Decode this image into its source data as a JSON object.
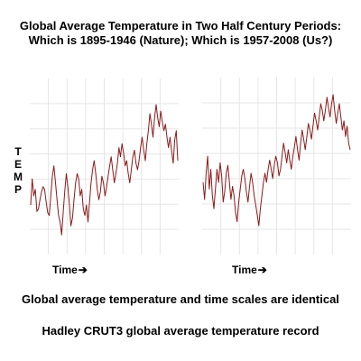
{
  "title": {
    "line1": "Global Average Temperature in Two Half Century Periods:",
    "line2": "Which is 1895-1946 (Nature);  Which is 1957-2008 (Us?)"
  },
  "y_axis_label": [
    "T",
    "E",
    "M",
    "P"
  ],
  "x_axis_label": "Time",
  "x_arrow": "➔",
  "note_scales": "Global average temperature and time scales are identical",
  "note_source": "Hadley CRUT3 global average temperature record",
  "colors": {
    "line": "#8b1a1a",
    "grid": "#e6e6e6",
    "panel_bg": "#ffffff"
  },
  "chart_data": [
    {
      "type": "line",
      "title": "",
      "xlabel": "Time",
      "ylabel": "TEMP",
      "grid": true,
      "series": [
        {
          "values": [
            -0.22,
            -0.02,
            -0.15,
            -0.1,
            -0.27,
            -0.25,
            -0.18,
            -0.12,
            -0.08,
            -0.1,
            -0.2,
            -0.28,
            -0.3,
            -0.15,
            0.0,
            0.08,
            -0.05,
            -0.18,
            -0.3,
            -0.35,
            -0.45,
            -0.28,
            -0.12,
            0.02,
            -0.08,
            -0.22,
            -0.38,
            -0.32,
            -0.18,
            -0.05,
            0.02,
            -0.02,
            -0.15,
            -0.1,
            -0.25,
            -0.3,
            -0.22,
            -0.35,
            -0.2,
            -0.05,
            0.05,
            0.12,
            0.02,
            -0.1,
            -0.18,
            -0.12,
            0.0,
            -0.05,
            -0.15,
            -0.08,
            0.0,
            0.08,
            0.15,
            0.05,
            -0.05,
            0.02,
            0.1,
            0.22,
            0.15,
            0.25,
            0.18,
            0.08,
            0.12,
            0.02,
            -0.05,
            0.05,
            0.15,
            0.2,
            0.1,
            0.05,
            0.12,
            0.22,
            0.3,
            0.2,
            0.12,
            0.25,
            0.35,
            0.48,
            0.4,
            0.3,
            0.45,
            0.55,
            0.45,
            0.38,
            0.5,
            0.42,
            0.35,
            0.4,
            0.3,
            0.22,
            0.3,
            0.2,
            0.1,
            0.28,
            0.35,
            0.12
          ]
        }
      ]
    },
    {
      "type": "line",
      "title": "",
      "xlabel": "Time",
      "ylabel": "",
      "grid": true,
      "series": [
        {
          "values": [
            -0.05,
            -0.18,
            0.02,
            0.15,
            -0.1,
            0.05,
            -0.15,
            -0.25,
            -0.1,
            0.05,
            -0.05,
            0.1,
            0.0,
            -0.2,
            -0.12,
            0.02,
            0.08,
            -0.05,
            -0.18,
            -0.08,
            -0.15,
            -0.28,
            -0.35,
            -0.2,
            -0.1,
            0.0,
            0.05,
            -0.02,
            -0.12,
            -0.2,
            -0.08,
            0.02,
            -0.05,
            -0.15,
            -0.22,
            -0.3,
            -0.38,
            -0.25,
            -0.15,
            -0.05,
            0.02,
            -0.05,
            0.05,
            0.12,
            0.05,
            -0.02,
            0.08,
            0.15,
            0.1,
            0.0,
            0.05,
            0.15,
            0.25,
            0.18,
            0.1,
            0.2,
            0.12,
            0.05,
            0.15,
            0.22,
            0.3,
            0.2,
            0.12,
            0.25,
            0.35,
            0.28,
            0.2,
            0.3,
            0.4,
            0.35,
            0.28,
            0.38,
            0.48,
            0.42,
            0.35,
            0.45,
            0.55,
            0.5,
            0.42,
            0.5,
            0.6,
            0.52,
            0.45,
            0.55,
            0.62,
            0.5,
            0.4,
            0.48,
            0.55,
            0.45,
            0.35,
            0.42,
            0.3,
            0.38,
            0.25,
            0.2
          ]
        }
      ]
    }
  ]
}
